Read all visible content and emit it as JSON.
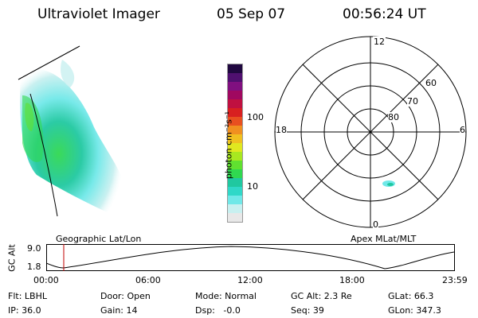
{
  "header": {
    "instrument": "Ultraviolet Imager",
    "date": "05 Sep 07",
    "time": "00:56:24 UT"
  },
  "colorbar": {
    "label": "photon cm⁻²s⁻¹",
    "ticks": [
      "100",
      "10"
    ],
    "colors": [
      "#e8e8e8",
      "#c8f0f0",
      "#70e8e8",
      "#30d8c8",
      "#20c8a0",
      "#30d850",
      "#60e030",
      "#a8e820",
      "#e0e820",
      "#f0c020",
      "#f09020",
      "#e85020",
      "#d82020",
      "#c01040",
      "#a00860",
      "#801080",
      "#501070",
      "#200840"
    ]
  },
  "polar": {
    "mlt_labels": {
      "top": "12",
      "left": "18",
      "right": "6",
      "bottom": "0"
    },
    "lat_labels": [
      "60",
      "70",
      "80"
    ]
  },
  "captions": {
    "geo": "Geographic Lat/Lon",
    "apex": "Apex MLat/MLT"
  },
  "altitude_plot": {
    "ylabel": "GC Alt",
    "y_ticks": [
      "9.0",
      "1.8"
    ],
    "x_ticks": [
      "00:00",
      "06:00",
      "12:00",
      "18:00",
      "23:59"
    ],
    "marker_time": "00:56"
  },
  "status": {
    "flt": "Flt: LBHL",
    "door": "Door: Open",
    "mode": "Mode: Normal",
    "gcalt": "GC Alt: 2.3 Re",
    "glat": "GLat: 66.3",
    "ip": "IP: 36.0",
    "gain": "Gain: 14",
    "dsp": "Dsp:   -0.0",
    "seq": "Seq: 39",
    "glon": "GLon: 347.3"
  }
}
